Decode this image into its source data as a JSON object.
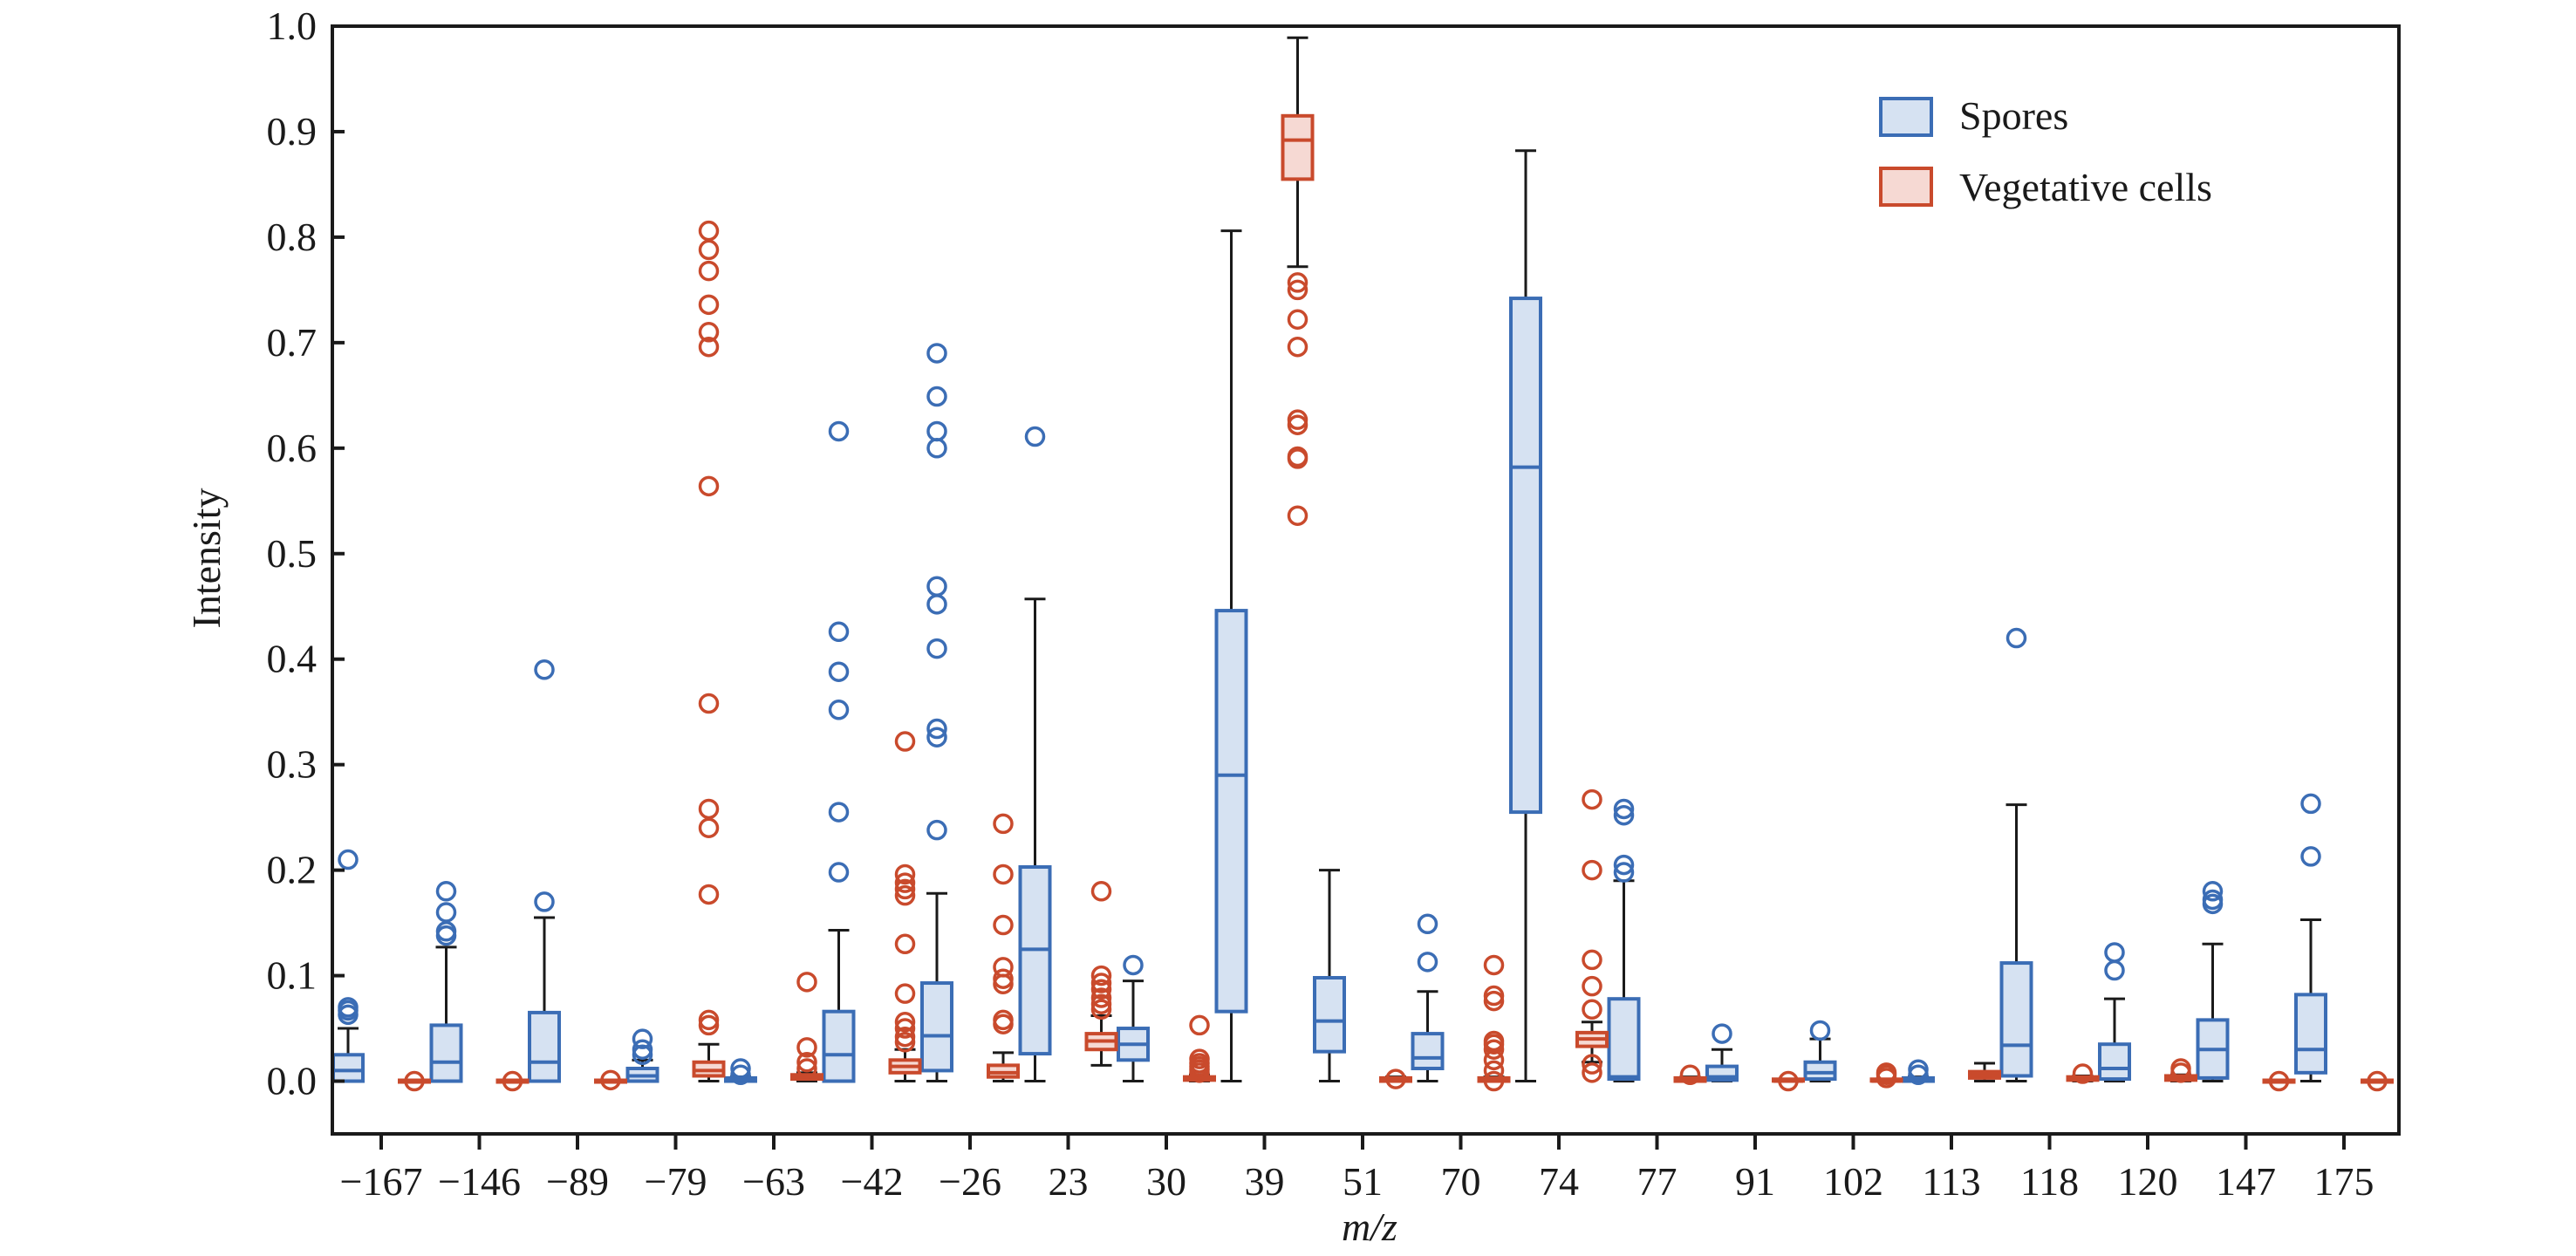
{
  "chart_data": {
    "type": "box",
    "title": "",
    "xlabel": "m/z",
    "ylabel": "Intensity",
    "ylim": [
      -0.05,
      1.0
    ],
    "yticks": [
      "0.0",
      "0.1",
      "0.2",
      "0.3",
      "0.4",
      "0.5",
      "0.6",
      "0.7",
      "0.8",
      "0.9",
      "1.0"
    ],
    "grid": false,
    "legend_position": "top-right",
    "categories": [
      "−167",
      "−146",
      "−89",
      "−79",
      "−63",
      "−42",
      "−26",
      "23",
      "30",
      "39",
      "51",
      "70",
      "74",
      "77",
      "91",
      "102",
      "113",
      "118",
      "120",
      "147",
      "175"
    ],
    "series": [
      {
        "name": "Spores",
        "color": "#3b6db5",
        "fill": "#d6e2f2",
        "boxes": [
          {
            "q1": 0.0,
            "median": 0.01,
            "q3": 0.025,
            "whislo": 0.0,
            "whishi": 0.05,
            "fliers": [
              0.063,
              0.067,
              0.07,
              0.21
            ]
          },
          {
            "q1": 0.0,
            "median": 0.018,
            "q3": 0.053,
            "whislo": 0.0,
            "whishi": 0.127,
            "fliers": [
              0.138,
              0.142,
              0.16,
              0.18
            ]
          },
          {
            "q1": 0.0,
            "median": 0.018,
            "q3": 0.065,
            "whislo": 0.0,
            "whishi": 0.155,
            "fliers": [
              0.17,
              0.39
            ]
          },
          {
            "q1": 0.0,
            "median": 0.005,
            "q3": 0.012,
            "whislo": 0.0,
            "whishi": 0.02,
            "fliers": [
              0.025,
              0.03,
              0.04
            ]
          },
          {
            "q1": 0.0,
            "median": 0.002,
            "q3": 0.003,
            "whislo": 0.0,
            "whishi": 0.004,
            "fliers": [
              0.006,
              0.012
            ]
          },
          {
            "q1": 0.0,
            "median": 0.025,
            "q3": 0.066,
            "whislo": 0.0,
            "whishi": 0.143,
            "fliers": [
              0.198,
              0.255,
              0.352,
              0.388,
              0.426,
              0.616
            ]
          },
          {
            "q1": 0.01,
            "median": 0.043,
            "q3": 0.093,
            "whislo": 0.0,
            "whishi": 0.178,
            "fliers": [
              0.238,
              0.326,
              0.334,
              0.41,
              0.452,
              0.469,
              0.6,
              0.616,
              0.649,
              0.69
            ]
          },
          {
            "q1": 0.026,
            "median": 0.125,
            "q3": 0.203,
            "whislo": 0.0,
            "whishi": 0.457,
            "fliers": [
              0.611
            ]
          },
          {
            "q1": 0.02,
            "median": 0.035,
            "q3": 0.05,
            "whislo": 0.0,
            "whishi": 0.095,
            "fliers": [
              0.11
            ]
          },
          {
            "q1": 0.066,
            "median": 0.29,
            "q3": 0.446,
            "whislo": 0.0,
            "whishi": 0.806,
            "fliers": []
          },
          {
            "q1": 0.028,
            "median": 0.057,
            "q3": 0.098,
            "whislo": 0.0,
            "whishi": 0.2,
            "fliers": []
          },
          {
            "q1": 0.012,
            "median": 0.022,
            "q3": 0.045,
            "whislo": 0.0,
            "whishi": 0.085,
            "fliers": [
              0.113,
              0.149
            ]
          },
          {
            "q1": 0.255,
            "median": 0.582,
            "q3": 0.742,
            "whislo": 0.0,
            "whishi": 0.882,
            "fliers": []
          },
          {
            "q1": 0.002,
            "median": 0.004,
            "q3": 0.078,
            "whislo": 0.0,
            "whishi": 0.19,
            "fliers": [
              0.198,
              0.205,
              0.252,
              0.258
            ]
          },
          {
            "q1": 0.001,
            "median": 0.004,
            "q3": 0.014,
            "whislo": 0.0,
            "whishi": 0.03,
            "fliers": [
              0.045
            ]
          },
          {
            "q1": 0.002,
            "median": 0.008,
            "q3": 0.018,
            "whislo": 0.0,
            "whishi": 0.04,
            "fliers": [
              0.048
            ]
          },
          {
            "q1": 0.0,
            "median": 0.002,
            "q3": 0.003,
            "whislo": 0.0,
            "whishi": 0.004,
            "fliers": [
              0.006,
              0.011
            ]
          },
          {
            "q1": 0.005,
            "median": 0.034,
            "q3": 0.112,
            "whislo": 0.0,
            "whishi": 0.262,
            "fliers": [
              0.42
            ]
          },
          {
            "q1": 0.002,
            "median": 0.012,
            "q3": 0.035,
            "whislo": 0.0,
            "whishi": 0.078,
            "fliers": [
              0.105,
              0.122
            ]
          },
          {
            "q1": 0.003,
            "median": 0.03,
            "q3": 0.058,
            "whislo": 0.0,
            "whishi": 0.13,
            "fliers": [
              0.168,
              0.172,
              0.18
            ]
          },
          {
            "q1": 0.008,
            "median": 0.03,
            "q3": 0.082,
            "whislo": 0.0,
            "whishi": 0.153,
            "fliers": [
              0.213,
              0.263
            ]
          }
        ]
      },
      {
        "name": "Vegetative cells",
        "color": "#c94a2c",
        "fill": "#f6d9d3",
        "boxes": [
          {
            "q1": 0.0,
            "median": 0.0,
            "q3": 0.0,
            "whislo": 0.0,
            "whishi": 0.0,
            "fliers": [
              0.0
            ]
          },
          {
            "q1": 0.0,
            "median": 0.0,
            "q3": 0.0,
            "whislo": 0.0,
            "whishi": 0.0,
            "fliers": [
              0.0
            ]
          },
          {
            "q1": 0.0,
            "median": 0.0,
            "q3": 0.0,
            "whislo": 0.0,
            "whishi": 0.0,
            "fliers": [
              0.001
            ]
          },
          {
            "q1": 0.005,
            "median": 0.01,
            "q3": 0.018,
            "whislo": 0.0,
            "whishi": 0.035,
            "fliers": [
              0.053,
              0.058,
              0.177,
              0.24,
              0.258,
              0.358,
              0.564,
              0.696,
              0.71,
              0.736,
              0.768,
              0.788,
              0.806
            ]
          },
          {
            "q1": 0.002,
            "median": 0.004,
            "q3": 0.006,
            "whislo": 0.0,
            "whishi": 0.008,
            "fliers": [
              0.012,
              0.018,
              0.032,
              0.094
            ]
          },
          {
            "q1": 0.008,
            "median": 0.014,
            "q3": 0.02,
            "whislo": 0.0,
            "whishi": 0.03,
            "fliers": [
              0.037,
              0.042,
              0.05,
              0.056,
              0.083,
              0.13,
              0.176,
              0.182,
              0.188,
              0.196,
              0.322
            ]
          },
          {
            "q1": 0.004,
            "median": 0.008,
            "q3": 0.015,
            "whislo": 0.0,
            "whishi": 0.027,
            "fliers": [
              0.054,
              0.058,
              0.092,
              0.097,
              0.108,
              0.148,
              0.196,
              0.244
            ]
          },
          {
            "q1": 0.03,
            "median": 0.038,
            "q3": 0.045,
            "whislo": 0.015,
            "whishi": 0.062,
            "fliers": [
              0.068,
              0.073,
              0.079,
              0.087,
              0.093,
              0.1,
              0.18
            ]
          },
          {
            "q1": 0.001,
            "median": 0.003,
            "q3": 0.004,
            "whislo": 0.0,
            "whishi": 0.006,
            "fliers": [
              0.008,
              0.011,
              0.014,
              0.017,
              0.021,
              0.053
            ]
          },
          {
            "q1": 0.855,
            "median": 0.892,
            "q3": 0.915,
            "whislo": 0.772,
            "whishi": 0.989,
            "fliers": [
              0.536,
              0.59,
              0.592,
              0.622,
              0.627,
              0.696,
              0.722,
              0.75,
              0.757
            ]
          },
          {
            "q1": 0.0,
            "median": 0.002,
            "q3": 0.003,
            "whislo": 0.0,
            "whishi": 0.004,
            "fliers": [
              0.002
            ]
          },
          {
            "q1": 0.0,
            "median": 0.002,
            "q3": 0.003,
            "whislo": 0.0,
            "whishi": 0.004,
            "fliers": [
              0.0,
              0.01,
              0.02,
              0.03,
              0.035,
              0.038,
              0.076,
              0.081,
              0.11
            ]
          },
          {
            "q1": 0.033,
            "median": 0.04,
            "q3": 0.046,
            "whislo": 0.018,
            "whishi": 0.056,
            "fliers": [
              0.008,
              0.016,
              0.068,
              0.09,
              0.115,
              0.2,
              0.267
            ]
          },
          {
            "q1": 0.0,
            "median": 0.002,
            "q3": 0.003,
            "whislo": 0.0,
            "whishi": 0.004,
            "fliers": [
              0.006
            ]
          },
          {
            "q1": 0.0,
            "median": 0.0,
            "q3": 0.001,
            "whislo": 0.0,
            "whishi": 0.001,
            "fliers": [
              0.0
            ]
          },
          {
            "q1": 0.0,
            "median": 0.0,
            "q3": 0.001,
            "whislo": 0.0,
            "whishi": 0.002,
            "fliers": [
              0.003,
              0.006,
              0.008
            ]
          },
          {
            "q1": 0.003,
            "median": 0.006,
            "q3": 0.009,
            "whislo": 0.0,
            "whishi": 0.017,
            "fliers": []
          },
          {
            "q1": 0.001,
            "median": 0.003,
            "q3": 0.004,
            "whislo": 0.0,
            "whishi": 0.005,
            "fliers": [
              0.007
            ]
          },
          {
            "q1": 0.001,
            "median": 0.004,
            "q3": 0.005,
            "whislo": 0.0,
            "whishi": 0.006,
            "fliers": [
              0.008,
              0.012
            ]
          },
          {
            "q1": 0.0,
            "median": 0.0,
            "q3": 0.0,
            "whislo": 0.0,
            "whishi": 0.0,
            "fliers": [
              0.0
            ]
          },
          {
            "q1": 0.0,
            "median": 0.0,
            "q3": 0.0,
            "whislo": 0.0,
            "whishi": 0.0,
            "fliers": [
              0.0
            ]
          }
        ]
      }
    ]
  },
  "legend": {
    "items": [
      {
        "label": "Spores"
      },
      {
        "label": "Vegetative cells"
      }
    ]
  },
  "axes": {
    "xlabel": "m/z",
    "ylabel": "Intensity"
  }
}
